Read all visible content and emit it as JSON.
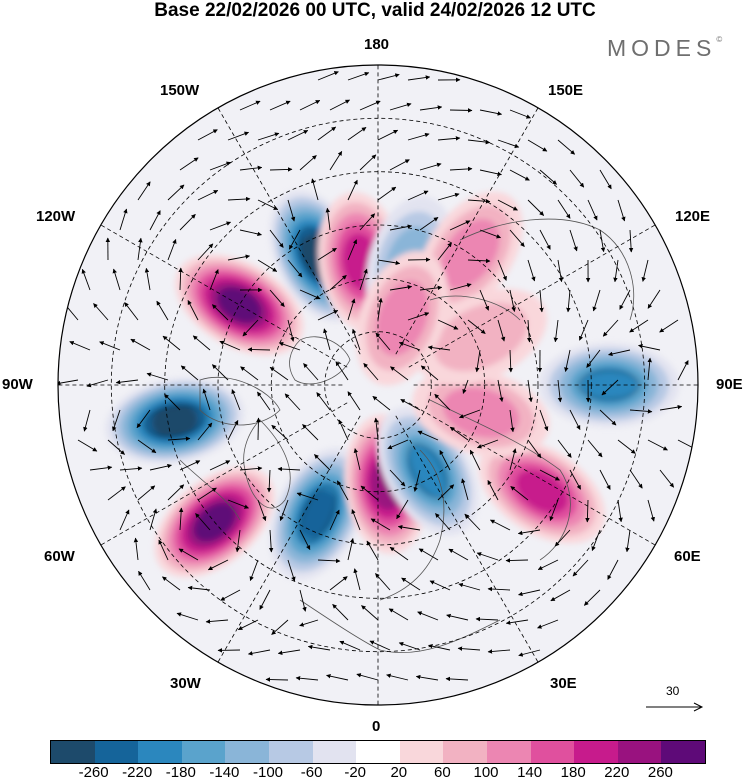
{
  "title": "Base 22/02/2026 00 UTC, valid 24/02/2026 12 UTC",
  "brand": "MODES",
  "brand_mark": "©",
  "longitude_labels": {
    "top": "180",
    "top_left": "150W",
    "top_right": "150E",
    "upper_left": "120W",
    "upper_right": "120E",
    "left": "90W",
    "right": "90E",
    "lower_left": "60W",
    "lower_right": "60E",
    "bottom_left": "30W",
    "bottom_right": "30E",
    "bottom": "0"
  },
  "reference_vector": {
    "value": "30"
  },
  "colorbar": {
    "colors": [
      "#1d4a6b",
      "#15649a",
      "#2b87be",
      "#5aa3cc",
      "#8ab5d8",
      "#b7c9e4",
      "#e2e3f0",
      "#ffffff",
      "#f9d7db",
      "#f2b2c2",
      "#ec86b2",
      "#e0509e",
      "#c71b8c",
      "#99127f",
      "#5e0a78"
    ],
    "tick_labels": [
      "-260",
      "-220",
      "-180",
      "-140",
      "-100",
      "-60",
      "-20",
      "20",
      "60",
      "100",
      "140",
      "180",
      "220",
      "260"
    ]
  },
  "anomaly_centers": [
    {
      "name": "blue-150w",
      "lon": -155,
      "lat": 50,
      "value": -260
    },
    {
      "name": "magenta-170w",
      "lon": -172,
      "lat": 55,
      "value": 180
    },
    {
      "name": "blue-170e",
      "lon": 165,
      "lat": 55,
      "value": -100
    },
    {
      "name": "pink-140e",
      "lon": 145,
      "lat": 45,
      "value": 100
    },
    {
      "name": "purple-120w",
      "lon": -120,
      "lat": 45,
      "value": 260
    },
    {
      "name": "blue-90e",
      "lon": 90,
      "lat": 25,
      "value": -180
    },
    {
      "name": "blue-90w",
      "lon": -80,
      "lat": 32,
      "value": -260
    },
    {
      "name": "purple-60w",
      "lon": -50,
      "lat": 30,
      "value": 260
    },
    {
      "name": "magenta-60e",
      "lon": 57,
      "lat": 35,
      "value": 180
    },
    {
      "name": "blue-30w",
      "lon": -25,
      "lat": 50,
      "value": -220
    },
    {
      "name": "magenta-10e",
      "lon": 5,
      "lat": 62,
      "value": 220
    },
    {
      "name": "blue-30e",
      "lon": 30,
      "lat": 62,
      "value": -180
    },
    {
      "name": "pink-80e",
      "lon": 75,
      "lat": 60,
      "value": 100
    },
    {
      "name": "pink-120e",
      "lon": 115,
      "lat": 58,
      "value": 60
    },
    {
      "name": "pink-160e",
      "lon": 160,
      "lat": 70,
      "value": 100
    }
  ]
}
